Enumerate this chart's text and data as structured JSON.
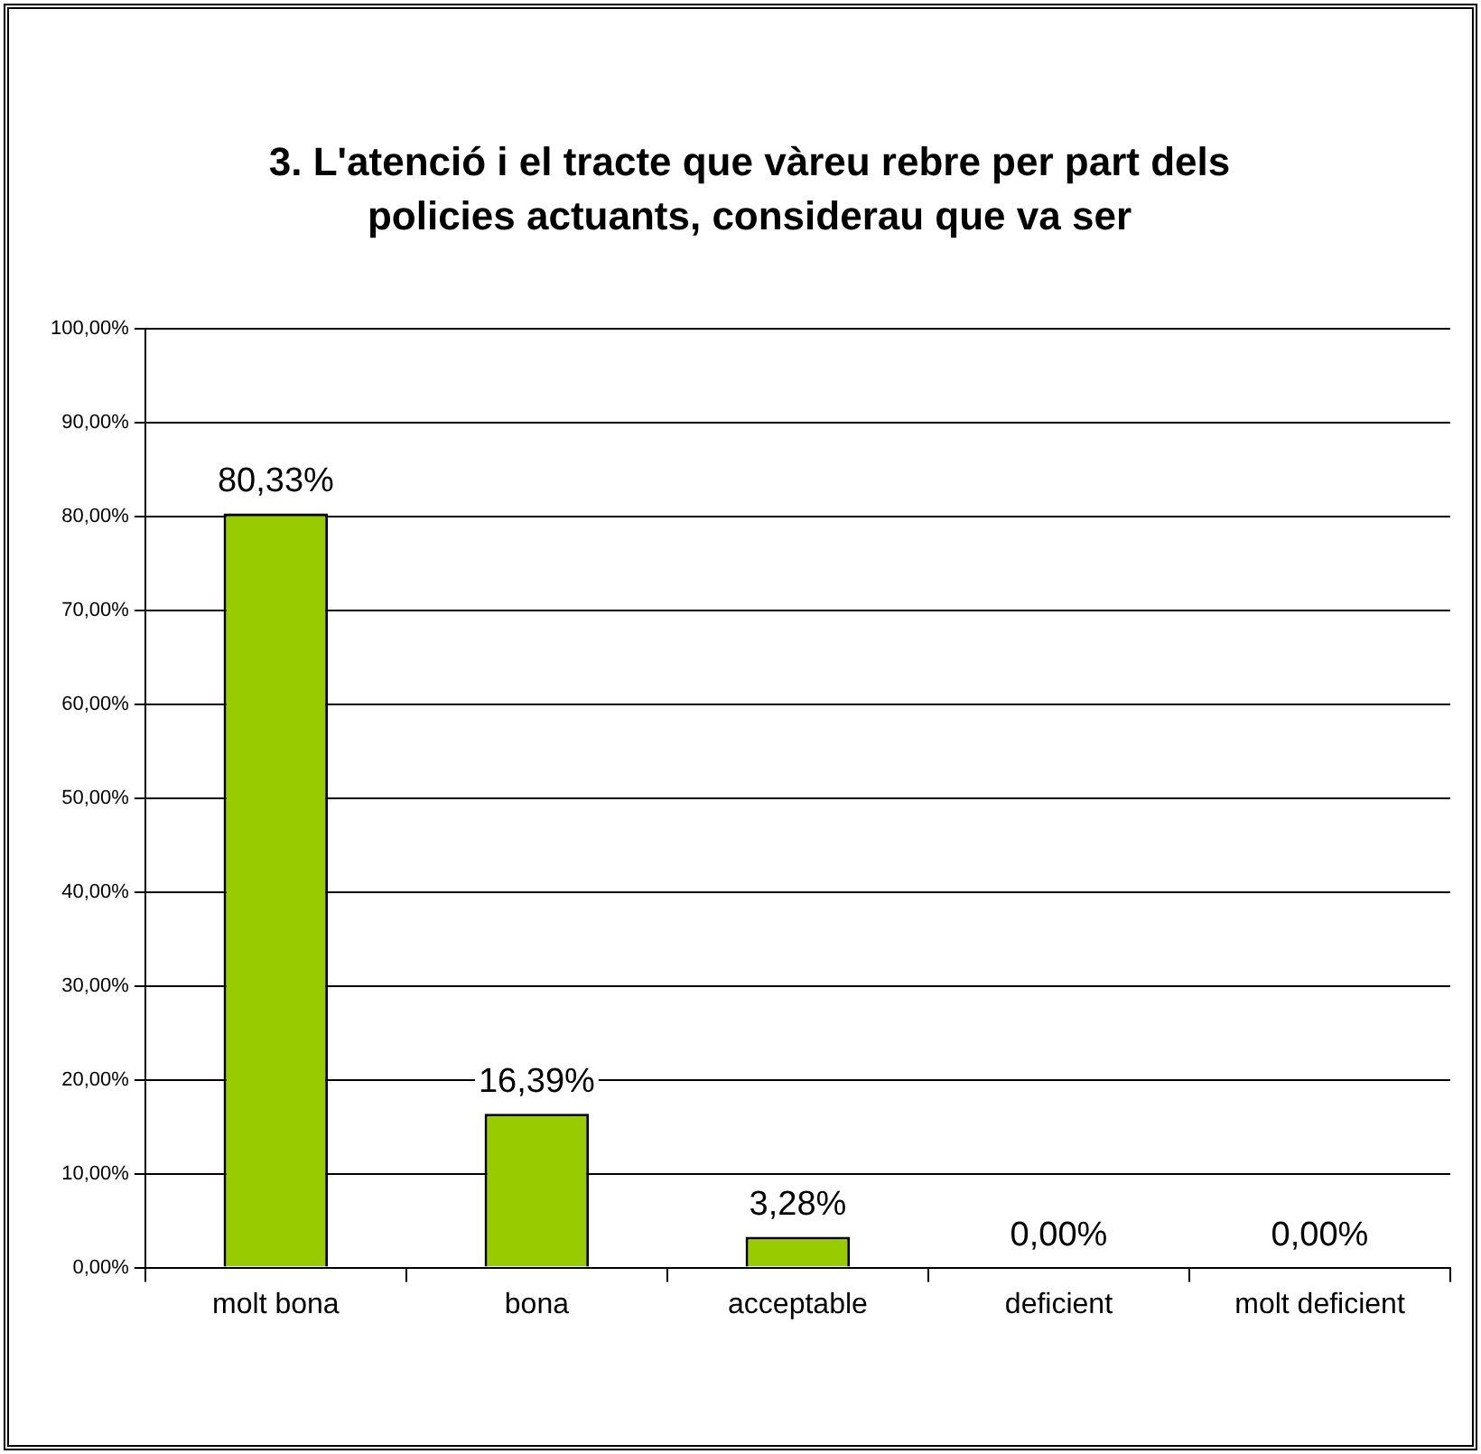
{
  "chart_data": {
    "type": "bar",
    "title": "3. L'atenció i el tracte que vàreu rebre per part dels policies actuants, considerau que va ser",
    "categories": [
      "molt bona",
      "bona",
      "acceptable",
      "deficient",
      "molt deficient"
    ],
    "values": [
      80.33,
      16.39,
      3.28,
      0,
      0
    ],
    "value_labels": [
      "80,33%",
      "16,39%",
      "3,28%",
      "0,00%",
      "0,00%"
    ],
    "color": "#99cc00",
    "ylim": [
      0,
      100
    ],
    "yticks": [
      {
        "value": 0,
        "label": "0,00%"
      },
      {
        "value": 10,
        "label": "10,00%"
      },
      {
        "value": 20,
        "label": "20,00%"
      },
      {
        "value": 30,
        "label": "30,00%"
      },
      {
        "value": 40,
        "label": "40,00%"
      },
      {
        "value": 50,
        "label": "50,00%"
      },
      {
        "value": 60,
        "label": "60,00%"
      },
      {
        "value": 70,
        "label": "70,00%"
      },
      {
        "value": 80,
        "label": "80,00%"
      },
      {
        "value": 90,
        "label": "90,00%"
      },
      {
        "value": 100,
        "label": "100,00%"
      }
    ],
    "grid": "y",
    "legend": false
  }
}
